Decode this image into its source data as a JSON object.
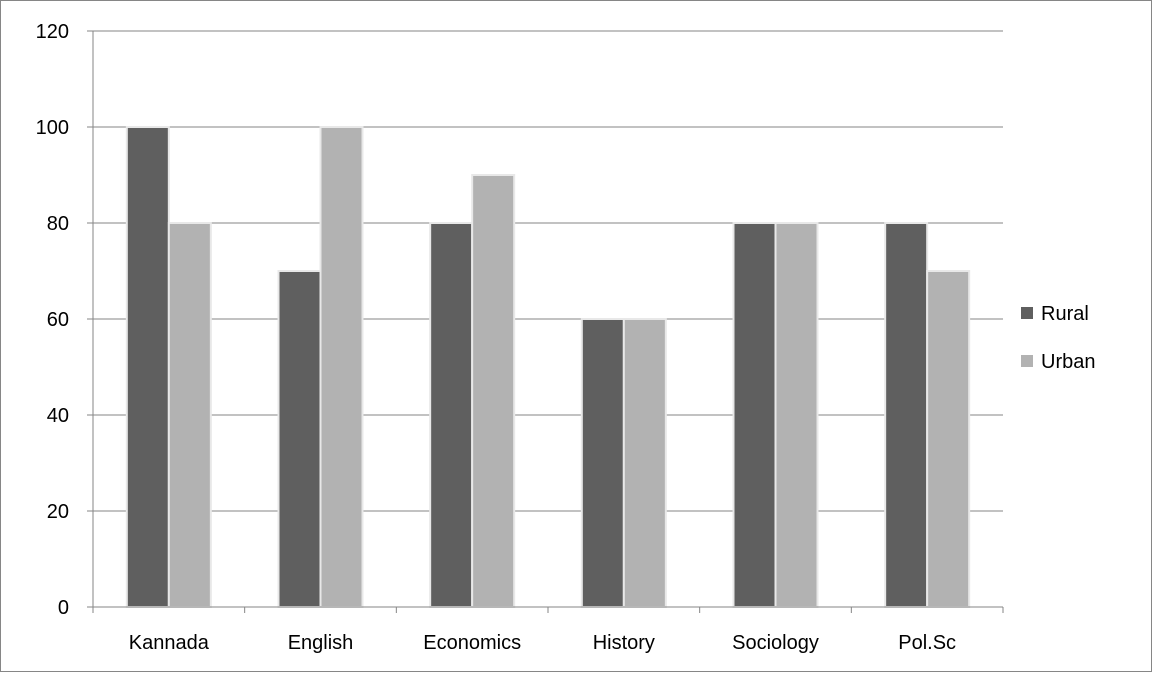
{
  "chart_data": {
    "type": "bar",
    "categories": [
      "Kannada",
      "English",
      "Economics",
      "History",
      "Sociology",
      "Pol.Sc"
    ],
    "series": [
      {
        "name": "Rural",
        "values": [
          100,
          70,
          80,
          60,
          80,
          80
        ],
        "color": "#5f5f5f"
      },
      {
        "name": "Urban",
        "values": [
          80,
          100,
          90,
          60,
          80,
          70
        ],
        "color": "#b2b2b2"
      }
    ],
    "yticks": [
      0,
      20,
      40,
      60,
      80,
      100,
      120
    ],
    "ylim": [
      0,
      120
    ],
    "grid": true,
    "legend_position": "right"
  }
}
